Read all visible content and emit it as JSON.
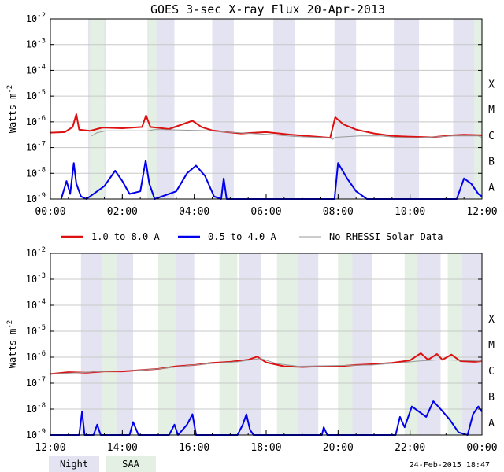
{
  "page": {
    "title": "GOES 3-sec X-ray Flux   20-Apr-2013",
    "footer_stamp": "24-Feb-2015 18:47",
    "night_label": "Night",
    "saa_label": "SAA"
  },
  "colors": {
    "long_channel": "#dd1111",
    "short_channel": "#0000ee",
    "no_rhessi": "#999999",
    "night": "#e3e3f2",
    "saa": "#e3f0e3",
    "grid": "#c8c8c8"
  },
  "legend": [
    {
      "label": "1.0 to 8.0 A",
      "color": "#dd1111",
      "weight": "thick"
    },
    {
      "label": "0.5 to 4.0 A",
      "color": "#0000ee",
      "weight": "thick"
    },
    {
      "label": "No RHESSI Solar Data",
      "color": "#999999",
      "weight": "thin"
    }
  ],
  "chart_data": [
    {
      "type": "line",
      "id": "top",
      "title": "GOES 3-sec X-ray Flux   20-Apr-2013",
      "ylabel": "Watts m^-2",
      "yscale": "log",
      "ylim_exp": [
        -9,
        -2
      ],
      "ytick_exps": [
        -2,
        -3,
        -4,
        -5,
        -6,
        -7,
        -8,
        -9
      ],
      "flare_classes": [
        {
          "label": "X",
          "exp": -4
        },
        {
          "label": "M",
          "exp": -5
        },
        {
          "label": "C",
          "exp": -6
        },
        {
          "label": "B",
          "exp": -7
        },
        {
          "label": "A",
          "exp": -8
        }
      ],
      "xlim_hours": [
        0,
        12
      ],
      "xticks": [
        {
          "h": 0,
          "label": "00:00"
        },
        {
          "h": 2,
          "label": "02:00"
        },
        {
          "h": 4,
          "label": "04:00"
        },
        {
          "h": 6,
          "label": "06:00"
        },
        {
          "h": 8,
          "label": "08:00"
        },
        {
          "h": 10,
          "label": "10:00"
        },
        {
          "h": 12,
          "label": "12:00"
        }
      ],
      "night_bands": [
        [
          1.05,
          1.55
        ],
        [
          2.7,
          3.45
        ],
        [
          4.5,
          5.1
        ],
        [
          6.2,
          6.8
        ],
        [
          7.9,
          8.5
        ],
        [
          9.55,
          10.25
        ],
        [
          11.2,
          11.8
        ]
      ],
      "saa_bands": [
        [
          1.1,
          1.5
        ],
        [
          2.72,
          2.95
        ],
        [
          11.78,
          12.0
        ]
      ],
      "series": [
        {
          "name": "1.0 to 8.0 A",
          "channel": "long",
          "log_points": [
            [
              0,
              -6.42
            ],
            [
              0.4,
              -6.4
            ],
            [
              0.62,
              -6.2
            ],
            [
              0.72,
              -5.7
            ],
            [
              0.8,
              -6.3
            ],
            [
              1.1,
              -6.35
            ],
            [
              1.45,
              -6.22
            ],
            [
              2.0,
              -6.25
            ],
            [
              2.55,
              -6.2
            ],
            [
              2.66,
              -5.75
            ],
            [
              2.78,
              -6.2
            ],
            [
              3.3,
              -6.28
            ],
            [
              3.7,
              -6.08
            ],
            [
              3.95,
              -5.96
            ],
            [
              4.2,
              -6.2
            ],
            [
              4.5,
              -6.33
            ],
            [
              4.9,
              -6.4
            ],
            [
              5.3,
              -6.45
            ],
            [
              6.0,
              -6.4
            ],
            [
              6.7,
              -6.5
            ],
            [
              7.4,
              -6.58
            ],
            [
              7.78,
              -6.62
            ],
            [
              7.92,
              -5.82
            ],
            [
              8.15,
              -6.1
            ],
            [
              8.5,
              -6.3
            ],
            [
              9.0,
              -6.45
            ],
            [
              9.5,
              -6.55
            ],
            [
              10.0,
              -6.58
            ],
            [
              10.6,
              -6.6
            ],
            [
              11.2,
              -6.52
            ],
            [
              11.5,
              -6.5
            ],
            [
              12.0,
              -6.52
            ]
          ]
        },
        {
          "name": "0.5 to 4.0 A",
          "channel": "short",
          "log_points": [
            [
              0.3,
              -9.0
            ],
            [
              0.45,
              -8.3
            ],
            [
              0.55,
              -8.8
            ],
            [
              0.65,
              -7.6
            ],
            [
              0.72,
              -8.4
            ],
            [
              0.85,
              -8.9
            ],
            [
              1.0,
              -9.0
            ],
            [
              1.5,
              -8.5
            ],
            [
              1.8,
              -7.9
            ],
            [
              2.0,
              -8.3
            ],
            [
              2.2,
              -8.8
            ],
            [
              2.5,
              -8.7
            ],
            [
              2.65,
              -7.5
            ],
            [
              2.75,
              -8.4
            ],
            [
              2.9,
              -9.0
            ],
            [
              3.5,
              -8.7
            ],
            [
              3.8,
              -8.0
            ],
            [
              4.05,
              -7.7
            ],
            [
              4.3,
              -8.1
            ],
            [
              4.55,
              -8.9
            ],
            [
              4.75,
              -9.1
            ],
            [
              4.82,
              -8.2
            ],
            [
              4.9,
              -9.1
            ],
            [
              7.9,
              -9.1
            ],
            [
              8.0,
              -7.6
            ],
            [
              8.25,
              -8.2
            ],
            [
              8.5,
              -8.7
            ],
            [
              8.8,
              -9.0
            ],
            [
              11.3,
              -9.1
            ],
            [
              11.5,
              -8.2
            ],
            [
              11.7,
              -8.4
            ],
            [
              11.9,
              -8.8
            ],
            [
              12.0,
              -8.9
            ]
          ]
        },
        {
          "name": "No RHESSI Solar Data",
          "channel": "gray",
          "log_points": [
            [
              1.15,
              -6.55
            ],
            [
              1.3,
              -6.42
            ],
            [
              1.55,
              -6.35
            ],
            [
              2.7,
              -6.35
            ],
            [
              2.9,
              -6.3
            ],
            [
              3.1,
              -6.3
            ],
            [
              4.5,
              -6.35
            ],
            [
              4.75,
              -6.38
            ],
            [
              4.9,
              -6.4
            ],
            [
              6.2,
              -6.5
            ],
            [
              6.6,
              -6.55
            ],
            [
              6.8,
              -6.57
            ],
            [
              7.75,
              -6.62
            ],
            [
              7.85,
              -6.68
            ],
            [
              7.92,
              -6.6
            ],
            [
              8.6,
              -6.55
            ],
            [
              9.2,
              -6.55
            ],
            [
              9.6,
              -6.6
            ],
            [
              10.2,
              -6.62
            ],
            [
              11.2,
              -6.55
            ],
            [
              11.9,
              -6.55
            ],
            [
              12.0,
              -6.6
            ]
          ]
        }
      ]
    },
    {
      "type": "line",
      "id": "bottom",
      "ylabel": "Watts m^-2",
      "yscale": "log",
      "ylim_exp": [
        -9,
        -2
      ],
      "ytick_exps": [
        -2,
        -3,
        -4,
        -5,
        -6,
        -7,
        -8,
        -9
      ],
      "flare_classes": [
        {
          "label": "X",
          "exp": -4
        },
        {
          "label": "M",
          "exp": -5
        },
        {
          "label": "C",
          "exp": -6
        },
        {
          "label": "B",
          "exp": -7
        },
        {
          "label": "A",
          "exp": -8
        }
      ],
      "xlim_hours": [
        12,
        24
      ],
      "xticks": [
        {
          "h": 12,
          "label": "12:00"
        },
        {
          "h": 14,
          "label": "14:00"
        },
        {
          "h": 16,
          "label": "16:00"
        },
        {
          "h": 18,
          "label": "18:00"
        },
        {
          "h": 20,
          "label": "20:00"
        },
        {
          "h": 22,
          "label": "22:00"
        },
        {
          "h": 24,
          "label": "00:00"
        }
      ],
      "night_bands": [
        [
          12.85,
          13.45
        ],
        [
          13.55,
          14.3
        ],
        [
          15.35,
          16.0
        ],
        [
          17.25,
          17.85
        ],
        [
          18.7,
          19.45
        ],
        [
          20.35,
          20.95
        ],
        [
          22.2,
          22.85
        ],
        [
          23.45,
          24.0
        ]
      ],
      "saa_bands": [
        [
          13.45,
          13.85
        ],
        [
          15.0,
          15.5
        ],
        [
          16.7,
          17.2
        ],
        [
          18.3,
          18.9
        ],
        [
          20.0,
          20.4
        ],
        [
          21.85,
          22.2
        ],
        [
          23.05,
          23.45
        ]
      ],
      "series": [
        {
          "name": "1.0 to 8.0 A",
          "channel": "long",
          "log_points": [
            [
              12.0,
              -6.65
            ],
            [
              12.5,
              -6.58
            ],
            [
              13.0,
              -6.6
            ],
            [
              13.5,
              -6.55
            ],
            [
              14.0,
              -6.55
            ],
            [
              14.5,
              -6.5
            ],
            [
              15.0,
              -6.45
            ],
            [
              15.5,
              -6.35
            ],
            [
              16.0,
              -6.3
            ],
            [
              16.5,
              -6.22
            ],
            [
              17.0,
              -6.18
            ],
            [
              17.5,
              -6.1
            ],
            [
              17.75,
              -5.98
            ],
            [
              18.0,
              -6.2
            ],
            [
              18.5,
              -6.35
            ],
            [
              19.0,
              -6.38
            ],
            [
              19.5,
              -6.35
            ],
            [
              20.0,
              -6.35
            ],
            [
              20.5,
              -6.3
            ],
            [
              21.0,
              -6.27
            ],
            [
              21.5,
              -6.22
            ],
            [
              22.0,
              -6.12
            ],
            [
              22.3,
              -5.85
            ],
            [
              22.5,
              -6.1
            ],
            [
              22.75,
              -5.88
            ],
            [
              22.9,
              -6.1
            ],
            [
              23.15,
              -5.9
            ],
            [
              23.4,
              -6.15
            ],
            [
              23.8,
              -6.18
            ],
            [
              24.0,
              -6.15
            ]
          ]
        },
        {
          "name": "0.5 to 4.0 A",
          "channel": "short",
          "log_points": [
            [
              12.0,
              -9.1
            ],
            [
              12.8,
              -9.1
            ],
            [
              12.88,
              -8.1
            ],
            [
              12.95,
              -9.0
            ],
            [
              13.2,
              -9.0
            ],
            [
              13.3,
              -8.6
            ],
            [
              13.4,
              -9.1
            ],
            [
              14.2,
              -9.1
            ],
            [
              14.3,
              -8.5
            ],
            [
              14.45,
              -9.1
            ],
            [
              15.3,
              -9.1
            ],
            [
              15.45,
              -8.6
            ],
            [
              15.55,
              -9.1
            ],
            [
              15.8,
              -8.6
            ],
            [
              15.95,
              -8.2
            ],
            [
              16.05,
              -9.1
            ],
            [
              17.2,
              -9.1
            ],
            [
              17.35,
              -8.6
            ],
            [
              17.45,
              -8.2
            ],
            [
              17.55,
              -8.8
            ],
            [
              17.65,
              -9.1
            ],
            [
              19.55,
              -9.1
            ],
            [
              19.6,
              -8.7
            ],
            [
              19.7,
              -9.1
            ],
            [
              21.6,
              -9.1
            ],
            [
              21.72,
              -8.3
            ],
            [
              21.85,
              -8.7
            ],
            [
              22.05,
              -7.9
            ],
            [
              22.25,
              -8.1
            ],
            [
              22.45,
              -8.3
            ],
            [
              22.65,
              -7.7
            ],
            [
              22.85,
              -8.0
            ],
            [
              23.1,
              -8.4
            ],
            [
              23.35,
              -8.9
            ],
            [
              23.6,
              -9.1
            ],
            [
              23.75,
              -8.2
            ],
            [
              23.9,
              -7.9
            ],
            [
              24.0,
              -8.1
            ]
          ]
        },
        {
          "name": "No RHESSI Solar Data",
          "channel": "gray",
          "log_points": [
            [
              12.0,
              -6.65
            ],
            [
              12.8,
              -6.6
            ],
            [
              13.45,
              -6.55
            ],
            [
              14.3,
              -6.52
            ],
            [
              15.0,
              -6.45
            ],
            [
              16.0,
              -6.3
            ],
            [
              16.7,
              -6.22
            ],
            [
              17.2,
              -6.18
            ],
            [
              17.85,
              -6.05
            ],
            [
              18.3,
              -6.25
            ],
            [
              18.9,
              -6.35
            ],
            [
              20.0,
              -6.32
            ],
            [
              20.95,
              -6.3
            ],
            [
              21.85,
              -6.2
            ],
            [
              22.2,
              -6.15
            ],
            [
              22.85,
              -6.1
            ],
            [
              23.45,
              -6.12
            ],
            [
              24.0,
              -6.15
            ]
          ]
        }
      ]
    }
  ]
}
